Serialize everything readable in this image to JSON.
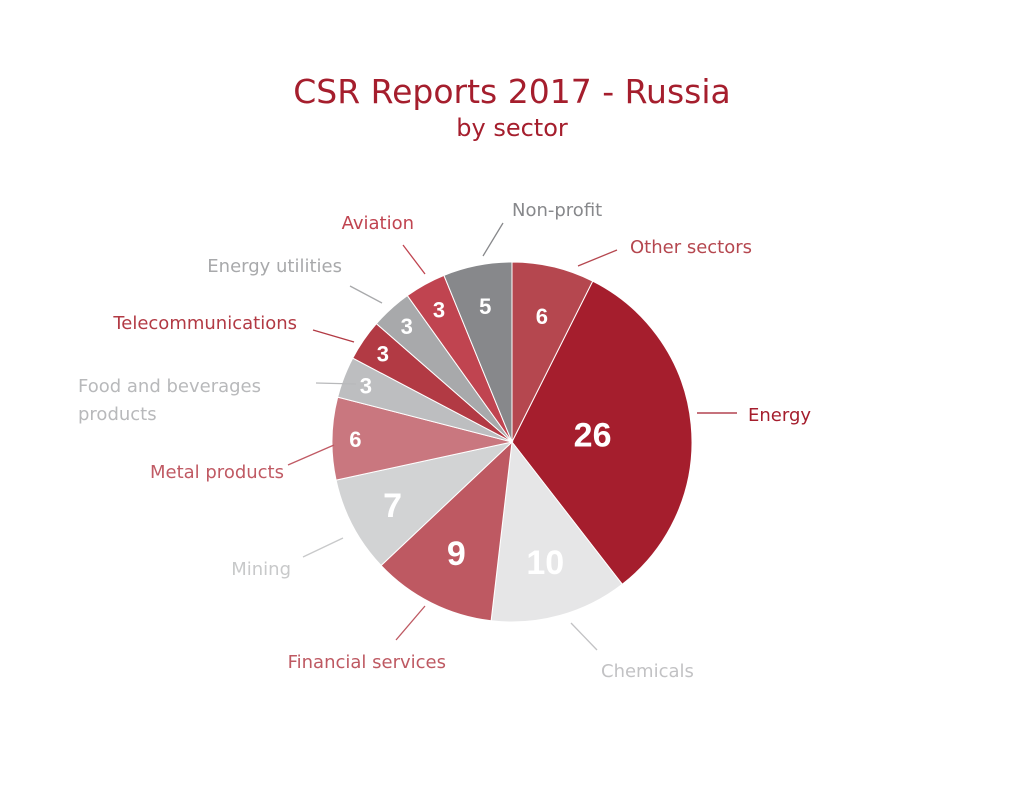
{
  "chart_data": {
    "type": "pie",
    "title": "CSR Reports 2017 - Russia",
    "subtitle": "by sector",
    "start_angle_deg": 0,
    "direction": "clockwise",
    "slices": [
      {
        "label": "Other sectors",
        "value": 6,
        "color": "#b5474f",
        "value_color": "#ffffff",
        "label_color": "#b5474f"
      },
      {
        "label": "Energy",
        "value": 26,
        "color": "#a51e2d",
        "value_color": "#ffffff",
        "label_color": "#a51e2d"
      },
      {
        "label": "Chemicals",
        "value": 10,
        "color": "#e6e6e7",
        "value_color": "#ffffff",
        "label_color": "#c2c2c4"
      },
      {
        "label": "Financial services",
        "value": 9,
        "color": "#be5962",
        "value_color": "#ffffff",
        "label_color": "#be5962"
      },
      {
        "label": "Mining",
        "value": 7,
        "color": "#d2d3d4",
        "value_color": "#ffffff",
        "label_color": "#c8c9ca"
      },
      {
        "label": "Metal products",
        "value": 6,
        "color": "#c9777f",
        "value_color": "#ffffff",
        "label_color": "#c05a64"
      },
      {
        "label": "Food and beverages products",
        "label_lines": [
          "Food and beverages",
          "products"
        ],
        "value": 3,
        "color": "#bdbec0",
        "value_color": "#ffffff",
        "label_color": "#b8b9bb"
      },
      {
        "label": "Telecommunications",
        "value": 3,
        "color": "#b23a44",
        "value_color": "#ffffff",
        "label_color": "#b23a44"
      },
      {
        "label": "Energy utilities",
        "value": 3,
        "color": "#a8a9ab",
        "value_color": "#ffffff",
        "label_color": "#a8a9ab"
      },
      {
        "label": "Aviation",
        "value": 3,
        "color": "#c04450",
        "value_color": "#ffffff",
        "label_color": "#c04450"
      },
      {
        "label": "Non-profit",
        "value": 5,
        "color": "#87888b",
        "value_color": "#ffffff",
        "label_color": "#87888b"
      }
    ]
  }
}
